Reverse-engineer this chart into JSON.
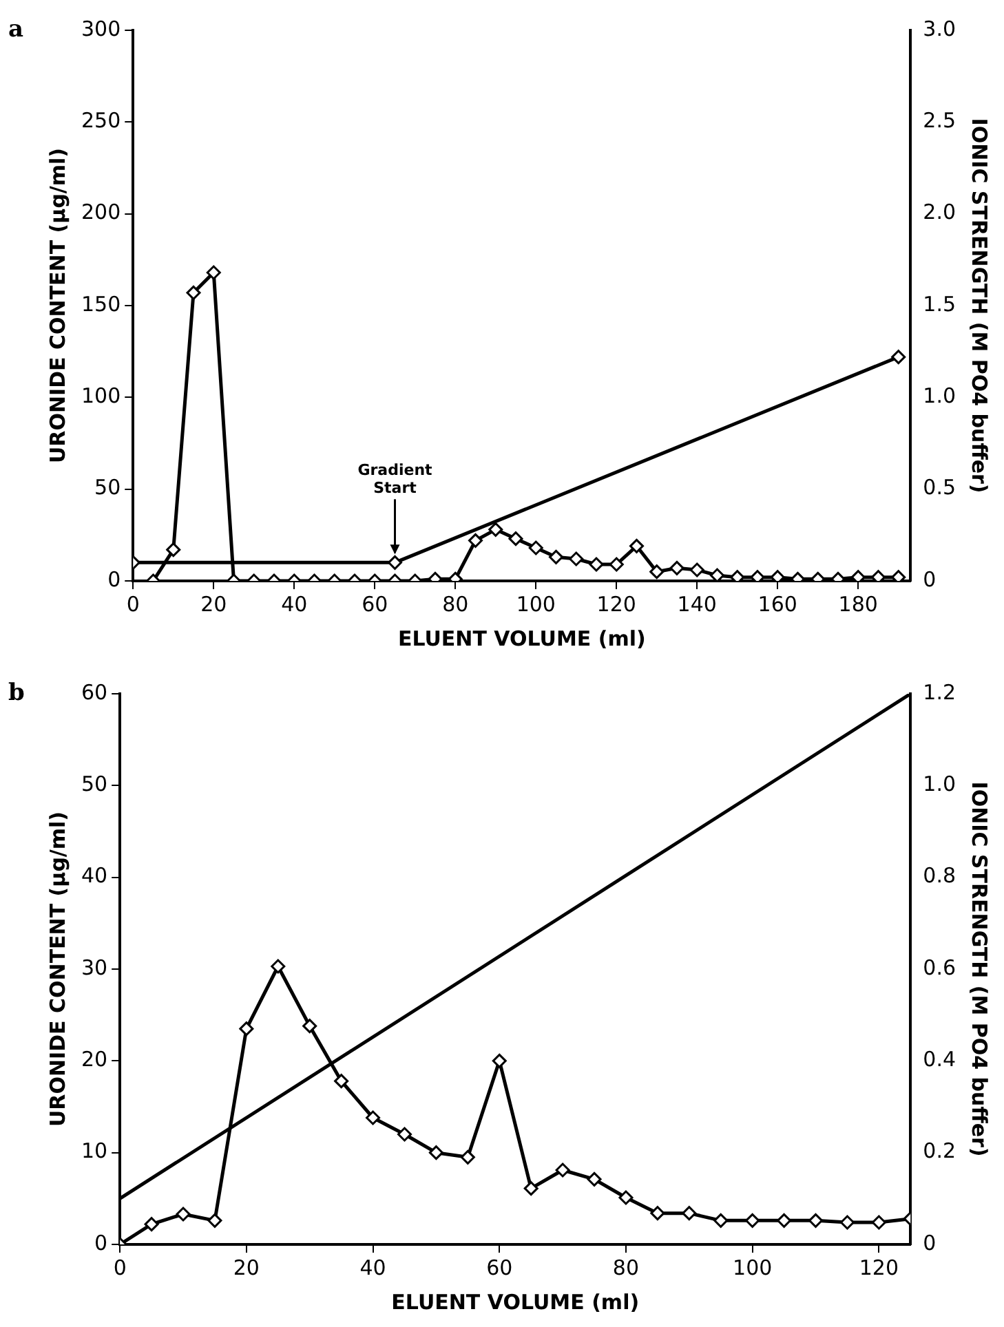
{
  "chart_data": [
    {
      "type": "line",
      "title": "a",
      "xlabel": "ELUENT VOLUME (ml)",
      "ylabel": "URONIDE CONTENT (μg/ml)",
      "y2label": "IONIC STRENGTH (M PO4 buffer)",
      "xlim": [
        0,
        193
      ],
      "xticks": [
        0,
        20,
        40,
        60,
        80,
        100,
        120,
        140,
        160,
        180
      ],
      "ylim": [
        0,
        300
      ],
      "yticks": [
        0,
        50,
        100,
        150,
        200,
        250,
        300
      ],
      "y2lim": [
        0,
        3
      ],
      "y2ticks": [
        0,
        0.5,
        {
          "value": 1,
          "label": "1.0"
        },
        1.5,
        {
          "value": 2,
          "label": "2.0"
        },
        2.5,
        {
          "value": 3,
          "label": "3.0"
        }
      ],
      "grid": false,
      "legend": false,
      "marker": "diamond",
      "line_style": "solid",
      "annotations": [
        {
          "text": "Gradient Start",
          "x": 65,
          "y": 10
        }
      ],
      "series": [
        {
          "color": "#000000",
          "x": [
            5,
            10,
            15,
            20,
            25,
            30,
            35,
            40,
            45,
            50,
            55,
            60,
            65,
            70,
            75,
            80,
            85,
            90,
            95,
            100,
            105,
            110,
            115,
            120,
            125,
            130,
            135,
            140,
            145,
            150,
            155,
            160,
            165,
            170,
            175,
            180,
            185,
            190
          ],
          "values": [
            0,
            17,
            157,
            168,
            0,
            0,
            0,
            0,
            0,
            0,
            0,
            0,
            0,
            0,
            1,
            1,
            22,
            28,
            23,
            18,
            13,
            12,
            9,
            9,
            19,
            5,
            7,
            6,
            3,
            2,
            2,
            2,
            1,
            1,
            1,
            2,
            2,
            2
          ]
        },
        {
          "color": "#000000",
          "axis": "y2",
          "x": [
            0,
            65,
            190
          ],
          "values": [
            0.1,
            0.1,
            1.22
          ]
        }
      ]
    },
    {
      "type": "line",
      "title": "b",
      "xlabel": "ELUENT VOLUME (ml)",
      "ylabel": "URONIDE CONTENT (μg/ml)",
      "y2label": "IONIC STRENGTH (M PO4 buffer)",
      "xlim": [
        0,
        125
      ],
      "xticks": [
        0,
        20,
        40,
        60,
        80,
        100,
        120
      ],
      "ylim": [
        0,
        60
      ],
      "yticks": [
        0,
        10,
        20,
        30,
        40,
        50,
        60
      ],
      "y2lim": [
        0,
        1.2
      ],
      "y2ticks": [
        0,
        0.2,
        0.4,
        0.6,
        0.8,
        {
          "value": 1,
          "label": "1.0"
        },
        1.2
      ],
      "grid": false,
      "legend": false,
      "line_style": "solid",
      "series": [
        {
          "color": "#000000",
          "marker": "diamond",
          "x": [
            0,
            5,
            10,
            15,
            20,
            25,
            30,
            35,
            40,
            45,
            50,
            55,
            60,
            65,
            70,
            75,
            80,
            85,
            90,
            95,
            100,
            105,
            110,
            115,
            120,
            125
          ],
          "values": [
            0,
            2.2,
            3.3,
            2.6,
            23.5,
            30.3,
            23.8,
            17.8,
            13.8,
            12,
            10,
            9.5,
            20,
            6.1,
            8.1,
            7.1,
            5.1,
            3.4,
            3.4,
            2.6,
            2.6,
            2.6,
            2.6,
            2.4,
            2.4,
            2.8
          ]
        },
        {
          "color": "#000000",
          "marker": "none",
          "axis": "y2",
          "x": [
            0,
            125
          ],
          "values": [
            0.1,
            1.2
          ]
        }
      ]
    }
  ]
}
